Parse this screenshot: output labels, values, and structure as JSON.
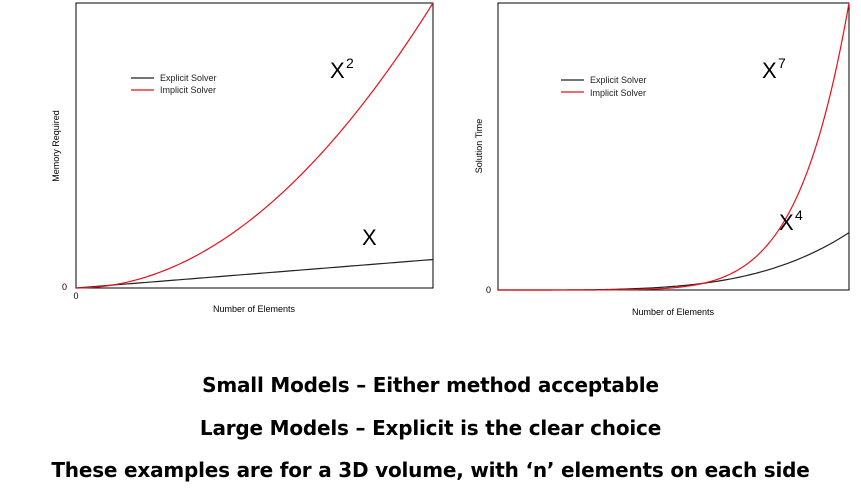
{
  "chart_data": [
    {
      "type": "line",
      "title": "",
      "xlabel": "Number of Elements",
      "ylabel": "Memory Required",
      "x_tick_labels": [
        "0"
      ],
      "y_tick_labels": [
        "0"
      ],
      "xlim": [
        0,
        1
      ],
      "ylim": [
        0,
        1
      ],
      "grid": false,
      "legend": "top-left",
      "series": [
        {
          "name": "Explicit Solver",
          "color": "#222222",
          "function": "x",
          "coef": 0.1,
          "annotation": "X",
          "annotation_sup": ""
        },
        {
          "name": "Implicit Solver",
          "color": "#e8101a",
          "function": "x^2",
          "coef": 1.0,
          "annotation": "X",
          "annotation_sup": "2"
        }
      ]
    },
    {
      "type": "line",
      "title": "",
      "xlabel": "Number of Elements",
      "ylabel": "Solution Time",
      "x_tick_labels": [],
      "y_tick_labels": [
        "0"
      ],
      "xlim": [
        0,
        1
      ],
      "ylim": [
        0,
        1
      ],
      "grid": false,
      "legend": "top-left",
      "series": [
        {
          "name": "Explicit Solver",
          "color": "#222222",
          "function": "x^4",
          "coef": 0.2,
          "annotation": "X",
          "annotation_sup": "4"
        },
        {
          "name": "Implicit Solver",
          "color": "#e8101a",
          "function": "x^7",
          "coef": 1.0,
          "annotation": "X",
          "annotation_sup": "7"
        }
      ]
    }
  ],
  "captions": {
    "line1": "Small Models – Either method acceptable",
    "line2": "Large Models – Explicit is the clear choice",
    "line3": "These examples are for a 3D volume, with ‘n’ elements on each side"
  }
}
